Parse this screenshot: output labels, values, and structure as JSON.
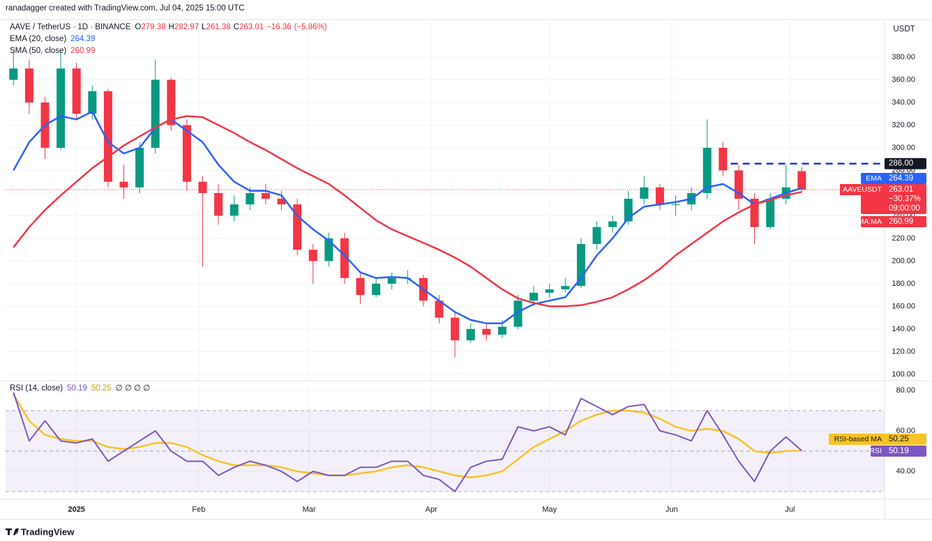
{
  "header": {
    "attribution": "ranadagger created with TradingView.com, Jul 04, 2025 15:00 UTC"
  },
  "footer": {
    "brand": "TradingView"
  },
  "chart_data": [
    {
      "type": "candlestick",
      "title": "AAVE / TetherUS · 1D · BINANCE",
      "ohlc_prefixes": [
        "O",
        "H",
        "L",
        "C"
      ],
      "change": "−16.36",
      "change_pct": "(−5.86%)",
      "symbol": "AAVEUSDT",
      "symbol_change": "−30.37%",
      "countdown": "09:00:00",
      "currency": "USDT",
      "up_color": "#089981",
      "down_color": "#f23645",
      "x": [
        -16,
        -12,
        -8,
        -4,
        0,
        4,
        8,
        12,
        16,
        20,
        24,
        28,
        32,
        36,
        40,
        44,
        48,
        52,
        56,
        60,
        64,
        68,
        72,
        76,
        80,
        84,
        88,
        92,
        96,
        100,
        104,
        108,
        112,
        116,
        120,
        124,
        128,
        132,
        136,
        140,
        144,
        148,
        152,
        156,
        160,
        164,
        168,
        172,
        176,
        180,
        184
      ],
      "open": [
        360,
        370,
        340,
        300,
        370,
        330,
        350,
        270,
        265,
        300,
        360,
        320,
        270,
        260,
        240,
        250,
        260,
        255,
        250,
        210,
        200,
        220,
        185,
        170,
        180,
        185,
        185,
        165,
        150,
        130,
        140,
        135,
        142,
        165,
        172,
        175,
        178,
        215,
        230,
        235,
        255,
        265,
        250,
        250,
        260,
        300,
        280,
        255,
        230,
        255,
        279.38
      ],
      "high": [
        385,
        378,
        345,
        385,
        375,
        355,
        352,
        285,
        305,
        378,
        362,
        325,
        275,
        268,
        258,
        265,
        268,
        262,
        255,
        215,
        225,
        225,
        190,
        185,
        190,
        192,
        188,
        170,
        155,
        145,
        145,
        148,
        170,
        178,
        180,
        185,
        220,
        235,
        240,
        262,
        275,
        268,
        258,
        265,
        325,
        305,
        285,
        260,
        260,
        285,
        282.97
      ],
      "low": [
        355,
        330,
        290,
        298,
        325,
        325,
        265,
        255,
        260,
        295,
        315,
        262,
        195,
        232,
        235,
        245,
        250,
        245,
        205,
        180,
        195,
        180,
        162,
        168,
        175,
        180,
        160,
        145,
        115,
        128,
        130,
        132,
        140,
        160,
        168,
        172,
        176,
        210,
        225,
        232,
        250,
        245,
        240,
        245,
        255,
        275,
        245,
        215,
        228,
        250,
        261.38
      ],
      "close": [
        370,
        340,
        300,
        370,
        330,
        350,
        270,
        265,
        300,
        360,
        320,
        270,
        260,
        240,
        250,
        260,
        255,
        250,
        210,
        200,
        220,
        185,
        170,
        180,
        185,
        185,
        165,
        150,
        130,
        140,
        135,
        142,
        165,
        172,
        175,
        178,
        215,
        230,
        235,
        255,
        265,
        250,
        250,
        260,
        300,
        280,
        255,
        230,
        255,
        265,
        263.01
      ],
      "series": [
        {
          "name": "EMA (20, close)",
          "short_name": "EMA",
          "color": "#2962ff",
          "values": [
            280,
            305,
            320,
            328,
            325,
            332,
            305,
            295,
            300,
            318,
            325,
            315,
            305,
            285,
            270,
            262,
            262,
            258,
            240,
            228,
            218,
            205,
            190,
            185,
            186,
            185,
            175,
            165,
            155,
            148,
            145,
            145,
            155,
            162,
            165,
            168,
            185,
            205,
            220,
            238,
            248,
            250,
            252,
            255,
            265,
            268,
            260,
            250,
            255,
            260,
            264.39
          ]
        },
        {
          "name": "SMA (50, close)",
          "short_name": "SMA:MA",
          "color": "#f23645",
          "values": [
            212,
            230,
            245,
            258,
            270,
            282,
            292,
            302,
            310,
            318,
            325,
            328,
            327,
            320,
            313,
            305,
            298,
            290,
            282,
            275,
            268,
            258,
            247,
            236,
            228,
            222,
            216,
            210,
            203,
            195,
            185,
            175,
            167,
            163,
            160,
            160,
            161,
            164,
            168,
            175,
            183,
            193,
            205,
            215,
            225,
            235,
            243,
            250,
            254,
            258,
            260.99
          ]
        }
      ],
      "resistance": {
        "value": 286,
        "label": "286.00",
        "from_x": 166,
        "color": "#1e35d6"
      },
      "xlim": [
        -18,
        205
      ],
      "ylim": [
        95,
        412
      ],
      "yticks": [
        {
          "value": 100,
          "label": "100.00"
        },
        {
          "value": 120,
          "label": "120.00"
        },
        {
          "value": 140,
          "label": "140.00"
        },
        {
          "value": 160,
          "label": "160.00"
        },
        {
          "value": 180,
          "label": "180.00"
        },
        {
          "value": 200,
          "label": "200.00"
        },
        {
          "value": 220,
          "label": "220.00"
        },
        {
          "value": 240,
          "label": "240.00"
        },
        {
          "value": 260,
          "label": "260.00"
        },
        {
          "value": 280,
          "label": "280.00"
        },
        {
          "value": 300,
          "label": "300.00"
        },
        {
          "value": 320,
          "label": "320.00"
        },
        {
          "value": 340,
          "label": "340.00"
        },
        {
          "value": 360,
          "label": "360.00"
        },
        {
          "value": 380,
          "label": "380.00"
        }
      ],
      "grid": true
    },
    {
      "type": "line",
      "title": "RSI (14, close)",
      "nulls": "∅ ∅ ∅ ∅",
      "x": [
        -16,
        -12,
        -8,
        -4,
        0,
        4,
        8,
        12,
        16,
        20,
        24,
        28,
        32,
        36,
        40,
        44,
        48,
        52,
        56,
        60,
        64,
        68,
        72,
        76,
        80,
        84,
        88,
        92,
        96,
        100,
        104,
        108,
        112,
        116,
        120,
        124,
        128,
        132,
        136,
        140,
        144,
        148,
        152,
        156,
        160,
        164,
        168,
        172,
        176,
        180,
        184
      ],
      "series": [
        {
          "name": "RSI",
          "color": "#7e57c2",
          "values": [
            79,
            55,
            65,
            55,
            54,
            56,
            45,
            50,
            55,
            60,
            50,
            45,
            45,
            38,
            42,
            45,
            43,
            40,
            35,
            40,
            38,
            38,
            42,
            42,
            45,
            45,
            38,
            36,
            30,
            42,
            45,
            46,
            62,
            60,
            62,
            58,
            76,
            72,
            68,
            72,
            73,
            60,
            58,
            55,
            70,
            58,
            45,
            35,
            50,
            57,
            50.19
          ]
        },
        {
          "name": "RSI-based MA",
          "color": "#f7c325",
          "values": [
            78,
            65,
            58,
            56,
            55,
            55,
            52,
            51,
            52,
            54,
            54,
            52,
            48,
            45,
            43,
            43,
            43,
            42,
            40,
            39,
            38,
            38,
            39,
            40,
            42,
            43,
            42,
            40,
            38,
            37,
            38,
            40,
            46,
            52,
            56,
            60,
            65,
            68,
            70,
            70,
            69,
            66,
            62,
            60,
            61,
            60,
            56,
            50,
            49,
            50,
            50.25
          ]
        }
      ],
      "levels": [
        70,
        50,
        30
      ],
      "band_color": "#7e57c2",
      "xlim": [
        -18,
        205
      ],
      "ylim": [
        26.6,
        84.1
      ],
      "yticks": [
        {
          "value": 40,
          "label": "40.00"
        },
        {
          "value": 60,
          "label": "60.00"
        },
        {
          "value": 80,
          "label": "80.00"
        }
      ],
      "xticks": [
        {
          "value": 0,
          "label": "2025"
        },
        {
          "value": 31,
          "label": "Feb"
        },
        {
          "value": 59,
          "label": "Mar"
        },
        {
          "value": 90,
          "label": "Apr"
        },
        {
          "value": 120,
          "label": "May"
        },
        {
          "value": 151,
          "label": "Jun"
        },
        {
          "value": 181,
          "label": "Jul"
        }
      ],
      "grid": true
    }
  ]
}
